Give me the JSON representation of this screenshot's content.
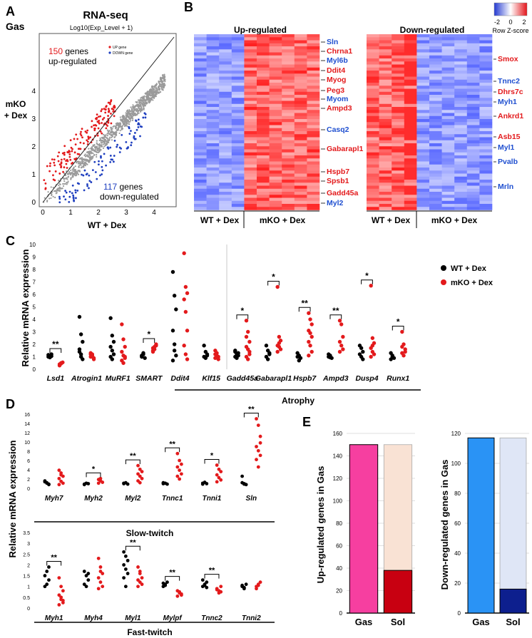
{
  "panels": {
    "A": "A",
    "B": "B",
    "C": "C",
    "D": "D",
    "E": "E"
  },
  "panel_a": {
    "title": "RNA-seq",
    "tissue": "Gas",
    "subtitle": "Log10(Exp_Level + 1)",
    "ylabel_line1": "mKO",
    "ylabel_line2": "+ Dex",
    "xlabel": "WT + Dex",
    "up_count": "150",
    "up_text1": " genes",
    "up_text2": "up-regulated",
    "down_count": "117",
    "down_text1": " genes",
    "down_text2": "down-regulated",
    "legend_up": "UP gene",
    "legend_down": "DOWN gene",
    "ticks": [
      "0",
      "1",
      "2",
      "3",
      "4"
    ],
    "colors": {
      "up": "#e31a1c",
      "down": "#1f3fbf",
      "points": "#9a9a9a"
    }
  },
  "panel_b": {
    "up_title": "Up-regulated",
    "down_title": "Down-regulated",
    "colorkey_title": "Row Z-score",
    "colorkey_ticks": [
      "-2",
      "0",
      "2"
    ],
    "up_genes": [
      {
        "name": "Sln",
        "color": "blue"
      },
      {
        "name": "Chrna1",
        "color": "red"
      },
      {
        "name": "Myl6b",
        "color": "blue"
      },
      {
        "name": "Ddit4",
        "color": "red"
      },
      {
        "name": "Myog",
        "color": "red"
      },
      {
        "name": "Peg3",
        "color": "red"
      },
      {
        "name": "Myom",
        "color": "blue"
      },
      {
        "name": "Ampd3",
        "color": "red"
      },
      {
        "name": "Casq2",
        "color": "blue"
      },
      {
        "name": "Gabarapl1",
        "color": "red"
      },
      {
        "name": "Hspb7",
        "color": "red"
      },
      {
        "name": "Spsb1",
        "color": "red"
      },
      {
        "name": "Gadd45a",
        "color": "red"
      },
      {
        "name": "Myl2",
        "color": "blue"
      }
    ],
    "down_genes": [
      {
        "name": "Smox",
        "color": "red"
      },
      {
        "name": "Tnnc2",
        "color": "blue"
      },
      {
        "name": "Dhrs7c",
        "color": "red"
      },
      {
        "name": "Myh1",
        "color": "blue"
      },
      {
        "name": "Ankrd1",
        "color": "red"
      },
      {
        "name": "Asb15",
        "color": "red"
      },
      {
        "name": "Myl1",
        "color": "blue"
      },
      {
        "name": "Pvalb",
        "color": "blue"
      },
      {
        "name": "Mrln",
        "color": "blue"
      }
    ],
    "group_wt": "WT + Dex",
    "group_mko": "mKO + Dex"
  },
  "chart_data": [
    {
      "type": "scatter",
      "panel": "C",
      "ylabel": "Relative mRNA expression",
      "ylim": [
        0,
        10
      ],
      "yticks": [
        "0",
        "1",
        "2",
        "3",
        "4",
        "5",
        "6",
        "7",
        "8",
        "9",
        "10"
      ],
      "legend": [
        {
          "name": "WT + Dex",
          "color": "#000000"
        },
        {
          "name": "mKO + Dex",
          "color": "#e31a1c"
        }
      ],
      "group_label": "Atrophy",
      "categories": [
        {
          "gene": "Lsd1",
          "wt": [
            1.0,
            1.1,
            1.05,
            1.15,
            0.95,
            1.2
          ],
          "mko": [
            0.3,
            0.45,
            0.55,
            0.4,
            0.5
          ],
          "sig": "**"
        },
        {
          "gene": "Atrogin1",
          "wt": [
            4.2,
            2.8,
            2.2,
            1.6,
            1.2,
            0.8,
            1.4,
            1.0
          ],
          "mko": [
            1.2,
            1.0,
            0.9,
            1.3,
            1.1,
            0.8,
            1.0,
            1.2
          ],
          "sig": ""
        },
        {
          "gene": "MuRF1",
          "wt": [
            4.1,
            2.7,
            2.2,
            1.8,
            1.5,
            1.2,
            1.0,
            0.8
          ],
          "mko": [
            3.6,
            2.4,
            1.8,
            1.4,
            1.1,
            0.9,
            0.7,
            0.5,
            1.0
          ],
          "sig": ""
        },
        {
          "gene": "SMART",
          "wt": [
            1.0,
            1.2,
            0.9,
            1.1,
            1.3
          ],
          "mko": [
            1.5,
            1.8,
            2.0,
            1.4,
            1.6,
            1.9,
            1.7
          ],
          "sig": "*"
        },
        {
          "gene": "Ddit4",
          "wt": [
            7.8,
            5.9,
            4.8,
            3.1,
            2.0,
            1.1,
            0.7,
            1.5
          ],
          "mko": [
            9.3,
            6.6,
            6.1,
            5.6,
            4.6,
            3.1,
            1.9,
            1.2,
            0.8
          ],
          "sig": ""
        },
        {
          "gene": "Klf15",
          "wt": [
            1.9,
            1.4,
            1.1,
            1.0,
            0.9,
            1.2
          ],
          "mko": [
            1.5,
            1.3,
            1.0,
            0.9,
            1.1,
            0.8,
            1.2
          ],
          "sig": ""
        },
        {
          "gene": "Gadd45a",
          "wt": [
            1.0,
            1.2,
            1.1,
            1.4,
            0.9,
            1.3,
            1.5
          ],
          "mko": [
            3.9,
            3.0,
            2.2,
            1.8,
            1.6,
            1.2,
            1.0,
            0.8,
            1.4,
            2.6
          ],
          "sig": "*"
        },
        {
          "gene": "Gabarapl1",
          "wt": [
            1.9,
            1.5,
            1.2,
            1.0,
            0.8,
            1.3
          ],
          "mko": [
            6.6,
            2.6,
            2.3,
            1.9,
            1.8,
            1.6,
            1.4,
            2.1
          ],
          "sig": "*"
        },
        {
          "gene": "Hspb7",
          "wt": [
            1.3,
            1.1,
            0.9,
            1.0,
            0.7
          ],
          "mko": [
            4.5,
            4.0,
            3.6,
            3.1,
            2.9,
            2.6,
            2.2,
            1.9,
            1.4,
            1.1
          ],
          "sig": "**"
        },
        {
          "gene": "Ampd3",
          "wt": [
            1.0,
            1.1,
            0.9,
            1.2,
            0.95
          ],
          "mko": [
            3.9,
            3.6,
            2.6,
            2.2,
            1.9,
            1.6,
            1.4
          ],
          "sig": "**"
        },
        {
          "gene": "Dusp4",
          "wt": [
            1.9,
            1.7,
            1.4,
            1.2,
            1.0,
            0.8
          ],
          "mko": [
            6.7,
            2.5,
            2.1,
            1.7,
            1.4,
            1.2,
            1.0,
            1.9
          ],
          "sig": "*"
        },
        {
          "gene": "Runx1",
          "wt": [
            1.3,
            1.1,
            0.9,
            0.8,
            1.0
          ],
          "mko": [
            3.0,
            2.0,
            1.6,
            1.3,
            1.1,
            1.4,
            1.8
          ],
          "sig": "*"
        }
      ]
    },
    {
      "type": "scatter",
      "panel": "D-slow",
      "ylabel": "Relative mRNA expression",
      "ylim": [
        0,
        16
      ],
      "yticks": [
        "0",
        "2",
        "4",
        "6",
        "8",
        "10",
        "12",
        "14",
        "16"
      ],
      "group_label": "Slow-twitch",
      "categories": [
        {
          "gene": "Myh7",
          "wt": [
            1.4,
            1.1,
            0.9,
            1.6,
            1.2,
            0.8
          ],
          "mko": [
            3.9,
            2.9,
            2.6,
            2.1,
            1.5,
            1.1,
            0.8,
            3.3
          ],
          "sig": ""
        },
        {
          "gene": "Myh2",
          "wt": [
            0.9,
            1.1,
            1.0,
            0.8
          ],
          "mko": [
            1.9,
            1.6,
            1.3,
            1.1,
            2.1
          ],
          "sig": "*"
        },
        {
          "gene": "Myl2",
          "wt": [
            1.0,
            1.2,
            0.9,
            1.1
          ],
          "mko": [
            4.9,
            4.1,
            3.6,
            3.1,
            2.6,
            2.1,
            1.6,
            1.2
          ],
          "sig": "**"
        },
        {
          "gene": "Tnnc1",
          "wt": [
            1.0,
            1.1,
            0.9,
            1.2
          ],
          "mko": [
            7.5,
            6.0,
            5.2,
            4.6,
            3.9,
            3.1,
            2.6,
            2.0
          ],
          "sig": "**"
        },
        {
          "gene": "Tnni1",
          "wt": [
            1.1,
            1.3,
            1.0,
            0.9
          ],
          "mko": [
            5.0,
            4.1,
            3.6,
            2.9,
            2.3,
            1.8,
            1.4
          ],
          "sig": "*"
        },
        {
          "gene": "Sln",
          "wt": [
            2.6,
            1.0,
            0.8,
            1.2,
            0.9
          ],
          "mko": [
            15.0,
            13.6,
            11.2,
            9.0,
            8.1,
            7.1,
            6.2,
            4.6,
            9.8
          ],
          "sig": "**"
        }
      ]
    },
    {
      "type": "scatter",
      "panel": "D-fast",
      "ylabel": "Relative mRNA expression",
      "ylim": [
        0,
        3.5
      ],
      "yticks": [
        "0",
        "0.5",
        "1",
        "1.5",
        "2",
        "2.5",
        "3",
        "3.5"
      ],
      "group_label": "Fast-twitch",
      "categories": [
        {
          "gene": "Myh1",
          "wt": [
            1.0,
            1.1,
            1.3,
            1.5,
            1.7,
            1.9
          ],
          "mko": [
            1.4,
            1.0,
            0.8,
            0.6,
            0.4,
            0.25,
            0.15,
            0.5,
            0.35
          ],
          "sig": "**"
        },
        {
          "gene": "Myh4",
          "wt": [
            1.7,
            1.5,
            1.3,
            1.1,
            1.0,
            1.6
          ],
          "mko": [
            2.3,
            1.9,
            1.6,
            1.4,
            1.2,
            1.0,
            0.9,
            1.7
          ],
          "sig": ""
        },
        {
          "gene": "Myl1",
          "wt": [
            2.6,
            2.4,
            2.2,
            2.0,
            1.8,
            1.6,
            1.4,
            1.0
          ],
          "mko": [
            1.9,
            1.6,
            1.4,
            1.3,
            1.2,
            1.1,
            1.0,
            1.7
          ],
          "sig": "**"
        },
        {
          "gene": "Mylpf",
          "wt": [
            1.0,
            1.1,
            1.2,
            1.15,
            1.05
          ],
          "mko": [
            0.8,
            0.7,
            0.6,
            0.55,
            0.75,
            0.65
          ],
          "sig": "**"
        },
        {
          "gene": "Tnnc2",
          "wt": [
            1.0,
            1.1,
            1.2,
            1.3,
            1.05,
            0.95
          ],
          "mko": [
            0.9,
            0.8,
            0.75,
            0.85,
            0.7,
            1.0
          ],
          "sig": "**"
        },
        {
          "gene": "Tnni2",
          "wt": [
            1.0,
            0.9,
            1.1,
            1.05,
            0.95
          ],
          "mko": [
            1.0,
            1.1,
            1.2,
            0.9,
            1.05
          ],
          "sig": ""
        }
      ]
    },
    {
      "type": "bar",
      "panel": "E-up",
      "ylabel": "Up-regulated genes in Gas",
      "ylim": [
        0,
        160
      ],
      "yticks": [
        "0",
        "20",
        "40",
        "60",
        "80",
        "100",
        "120",
        "140",
        "160"
      ],
      "categories": [
        "Gas",
        "Sol"
      ],
      "values": [
        150,
        38
      ],
      "totals": [
        150,
        150
      ],
      "colors": [
        "#f63fa0",
        "#c80011"
      ],
      "background_color": "#f9e2d4"
    },
    {
      "type": "bar",
      "panel": "E-down",
      "ylabel": "Down-regulated genes in Gas",
      "ylim": [
        0,
        120
      ],
      "yticks": [
        "0",
        "20",
        "40",
        "60",
        "80",
        "100",
        "120"
      ],
      "categories": [
        "Gas",
        "Sol"
      ],
      "values": [
        117,
        16
      ],
      "totals": [
        117,
        117
      ],
      "colors": [
        "#2a93f5",
        "#0d1f8e"
      ],
      "background_color": "#dfe6f6"
    }
  ]
}
